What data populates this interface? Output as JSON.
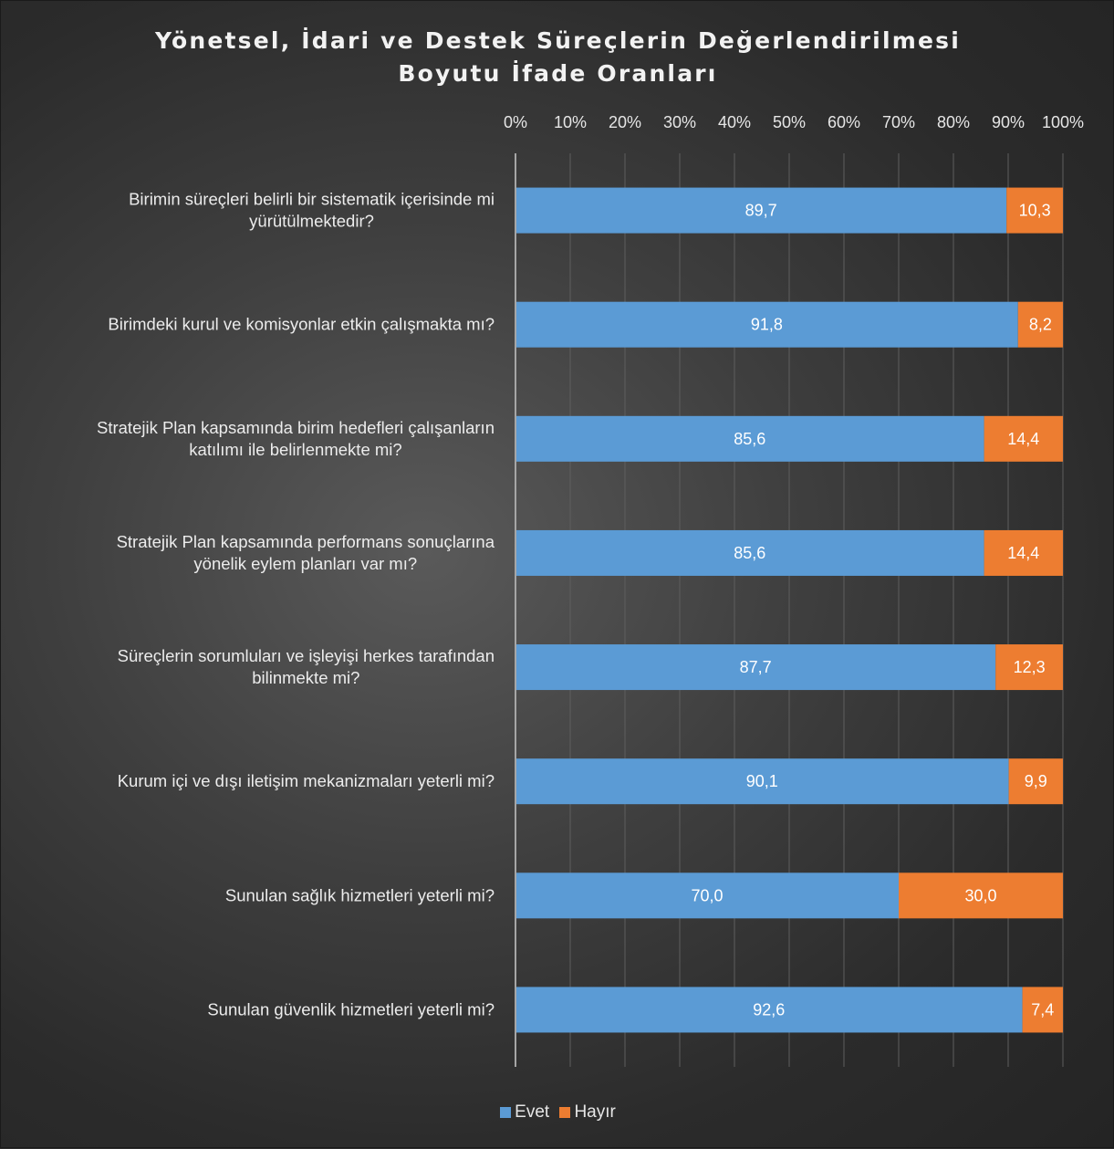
{
  "chart_data": {
    "type": "bar",
    "orientation": "horizontal",
    "stacked": true,
    "title": [
      "Yönetsel, İdari ve Destek Süreçlerin Değerlendirilmesi",
      "Boyutu İfade Oranları"
    ],
    "xlim": [
      0,
      100
    ],
    "x_ticks": [
      "0%",
      "10%",
      "20%",
      "30%",
      "40%",
      "50%",
      "60%",
      "70%",
      "80%",
      "90%",
      "100%"
    ],
    "x_ticks_position": "top",
    "grid": true,
    "legend_position": "bottom",
    "categories": [
      [
        "Birimin süreçleri belirli bir sistematik içerisinde mi",
        "yürütülmektedir?"
      ],
      [
        "Birimdeki kurul ve komisyonlar etkin çalışmakta mı?"
      ],
      [
        "Stratejik Plan kapsamında birim hedefleri çalışanların",
        "katılımı ile belirlenmekte mi?"
      ],
      [
        "Stratejik Plan kapsamında performans sonuçlarına",
        "yönelik eylem planları var mı?"
      ],
      [
        "Süreçlerin sorumluları ve işleyişi herkes tarafından",
        "bilinmekte mi?"
      ],
      [
        "Kurum içi ve dışı iletişim mekanizmaları yeterli mi?"
      ],
      [
        "Sunulan sağlık hizmetleri yeterli mi?"
      ],
      [
        "Sunulan güvenlik hizmetleri yeterli mi?"
      ]
    ],
    "series": [
      {
        "name": "Evet",
        "color": "#5b9bd5",
        "values": [
          89.7,
          91.8,
          85.6,
          85.6,
          87.7,
          90.1,
          70.0,
          92.6
        ],
        "labels": [
          "89,7",
          "91,8",
          "85,6",
          "85,6",
          "87,7",
          "90,1",
          "70,0",
          "92,6"
        ]
      },
      {
        "name": "Hayır",
        "color": "#ed7d31",
        "values": [
          10.3,
          8.2,
          14.4,
          14.4,
          12.3,
          9.9,
          30.0,
          7.4
        ],
        "labels": [
          "10,3",
          "8,2",
          "14,4",
          "14,4",
          "12,3",
          "9,9",
          "30,0",
          "7,4"
        ]
      }
    ]
  }
}
